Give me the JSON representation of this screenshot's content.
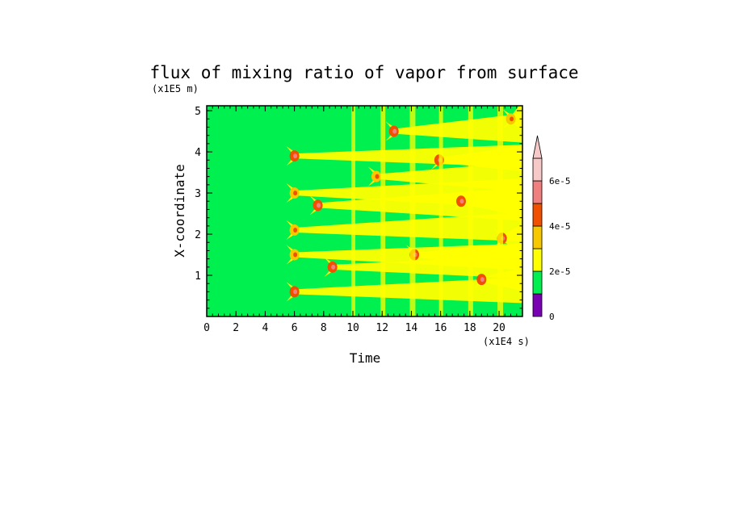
{
  "chart_data": {
    "type": "heatmap",
    "title": "flux of mixing ratio of vapor from surface",
    "xlabel": "Time",
    "ylabel": "X-coordinate",
    "x_unit_label": "(x1E4 s)",
    "y_unit_label": "(x1E5 m)",
    "xlim": [
      0,
      21.6
    ],
    "ylim": [
      0,
      5.12
    ],
    "x_ticks": [
      "0",
      "2",
      "4",
      "6",
      "8",
      "10",
      "12",
      "14",
      "16",
      "18",
      "20"
    ],
    "y_ticks": [
      "1",
      "2",
      "3",
      "4",
      "5"
    ],
    "colorbar": {
      "levels": [
        0,
        1e-05,
        2e-05,
        3e-05,
        4e-05,
        5e-05,
        6e-05,
        7e-05
      ],
      "tick_labels": [
        "0",
        "2e-5",
        "4e-5",
        "6e-5"
      ],
      "colors": [
        "#7a00b4",
        "#00f050",
        "#ffff00",
        "#f7c800",
        "#f05000",
        "#f08080",
        "#f7c8c8",
        "#f7c8c8"
      ],
      "extend": "max"
    },
    "dominant_values": {
      "background": 1.5e-05,
      "moist_bands_from_time": 6.0
    },
    "streak_sources": [
      {
        "time": 6.0,
        "x": 3.9,
        "value": 4.5e-05
      },
      {
        "time": 6.0,
        "x": 3.0,
        "value": 3.5e-05
      },
      {
        "time": 6.0,
        "x": 2.1,
        "value": 3.5e-05
      },
      {
        "time": 6.0,
        "x": 1.5,
        "value": 3.2e-05
      },
      {
        "time": 6.0,
        "x": 0.6,
        "value": 4.5e-05
      },
      {
        "time": 7.6,
        "x": 2.7,
        "value": 4.5e-05
      },
      {
        "time": 8.6,
        "x": 1.2,
        "value": 4.5e-05
      },
      {
        "time": 11.6,
        "x": 3.4,
        "value": 3.8e-05
      },
      {
        "time": 12.8,
        "x": 4.5,
        "value": 4.5e-05
      },
      {
        "time": 14.2,
        "x": 1.5,
        "value": 4.5e-05
      },
      {
        "time": 15.9,
        "x": 3.8,
        "value": 4.5e-05
      },
      {
        "time": 17.4,
        "x": 2.8,
        "value": 4.5e-05
      },
      {
        "time": 18.8,
        "x": 0.9,
        "value": 4.8e-05
      },
      {
        "time": 20.2,
        "x": 1.9,
        "value": 4.5e-05
      },
      {
        "time": 20.8,
        "x": 4.8,
        "value": 3.2e-05
      }
    ]
  }
}
